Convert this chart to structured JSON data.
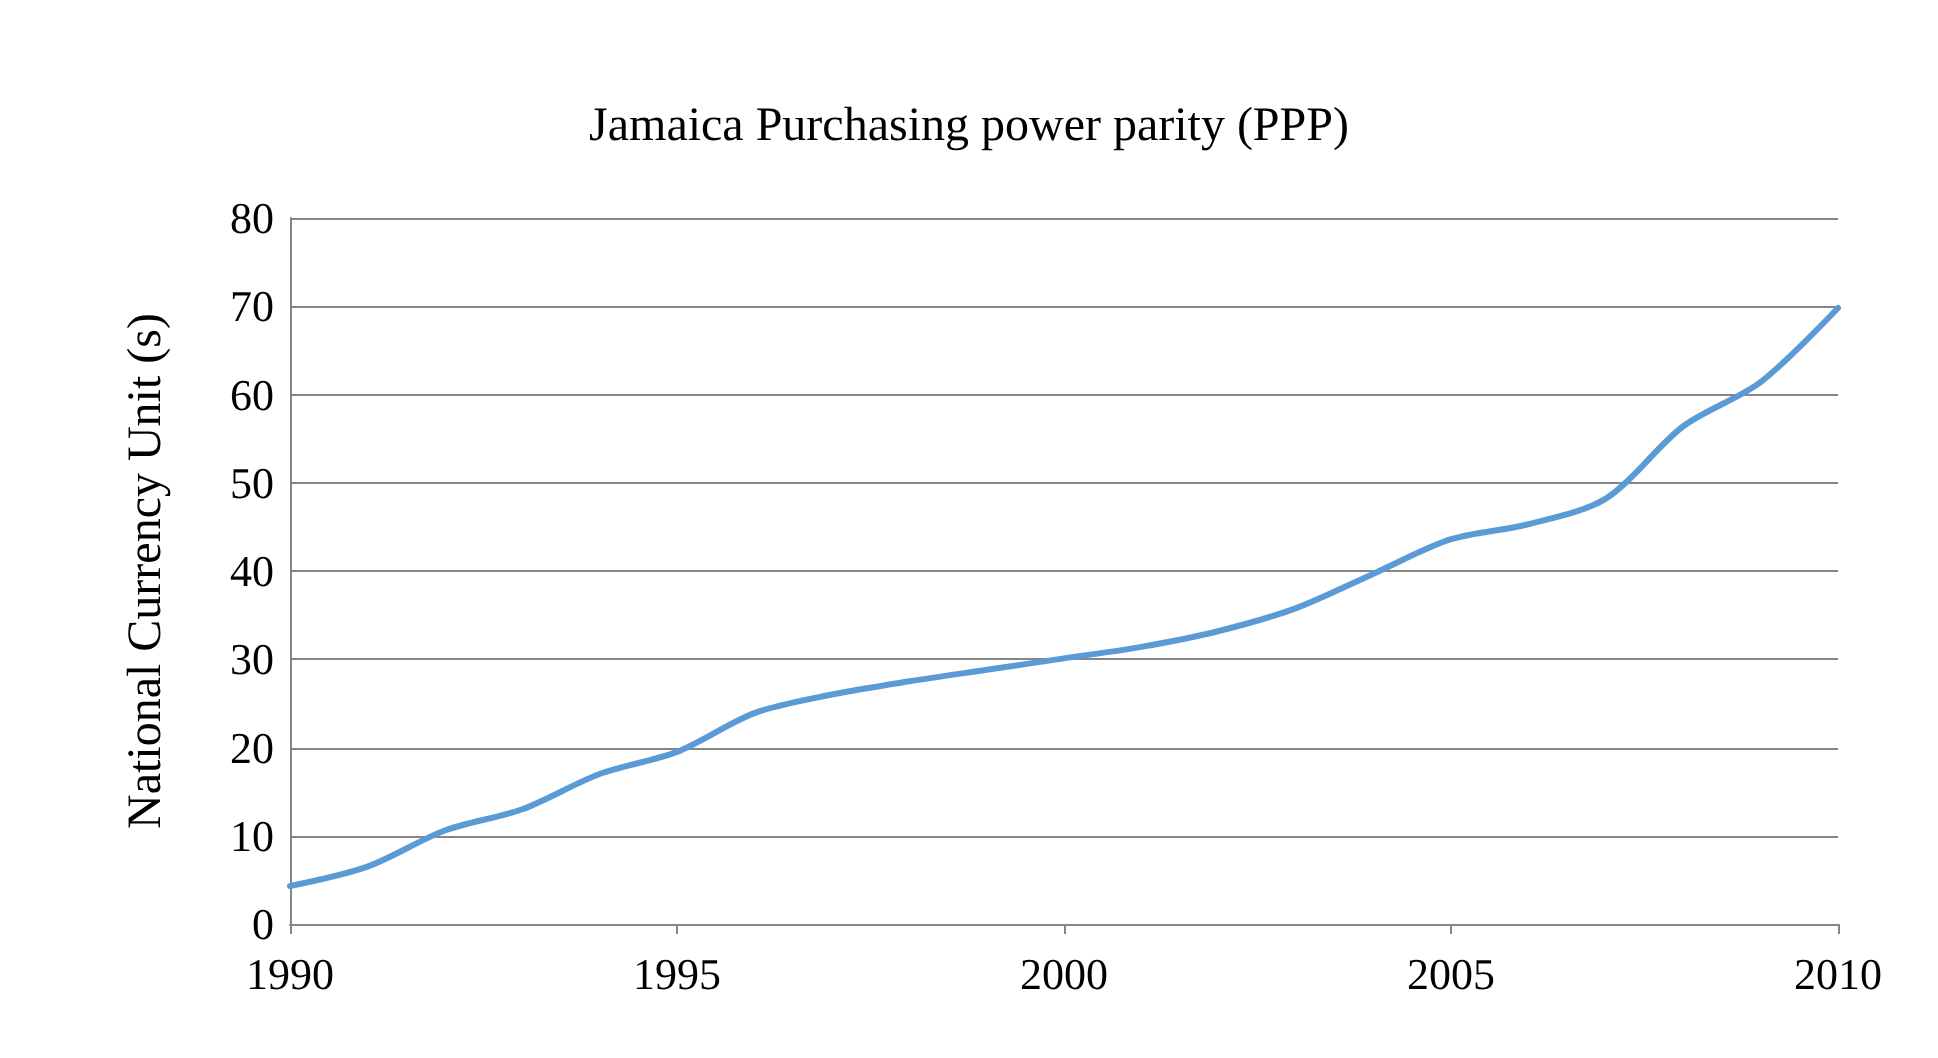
{
  "chart_data": {
    "type": "line",
    "title": "Jamaica Purchasing power parity (PPP)",
    "ylabel": "National Currency Unit (s)",
    "x": [
      1990,
      1991,
      1992,
      1993,
      1994,
      1995,
      1996,
      1997,
      1998,
      1999,
      2000,
      2001,
      2002,
      2003,
      2004,
      2005,
      2006,
      2007,
      2008,
      2009,
      2010
    ],
    "series": [
      {
        "color": "#5b9bd5",
        "values": [
          4.3,
          6.5,
          10.6,
          13,
          17,
          19.5,
          23.9,
          26,
          27.5,
          28.8,
          30.1,
          31.4,
          33.2,
          35.8,
          39.7,
          43.6,
          45.3,
          48.2,
          56.4,
          61.4,
          69.8
        ]
      }
    ],
    "xlim": [
      1990,
      2010
    ],
    "xticks": [
      1990,
      1995,
      2000,
      2005,
      2010
    ],
    "ylim": [
      0,
      80
    ],
    "yticks": [
      0,
      10,
      20,
      30,
      40,
      50,
      60,
      70,
      80
    ],
    "grid": "y",
    "marker": "none",
    "line_style": "solid"
  }
}
